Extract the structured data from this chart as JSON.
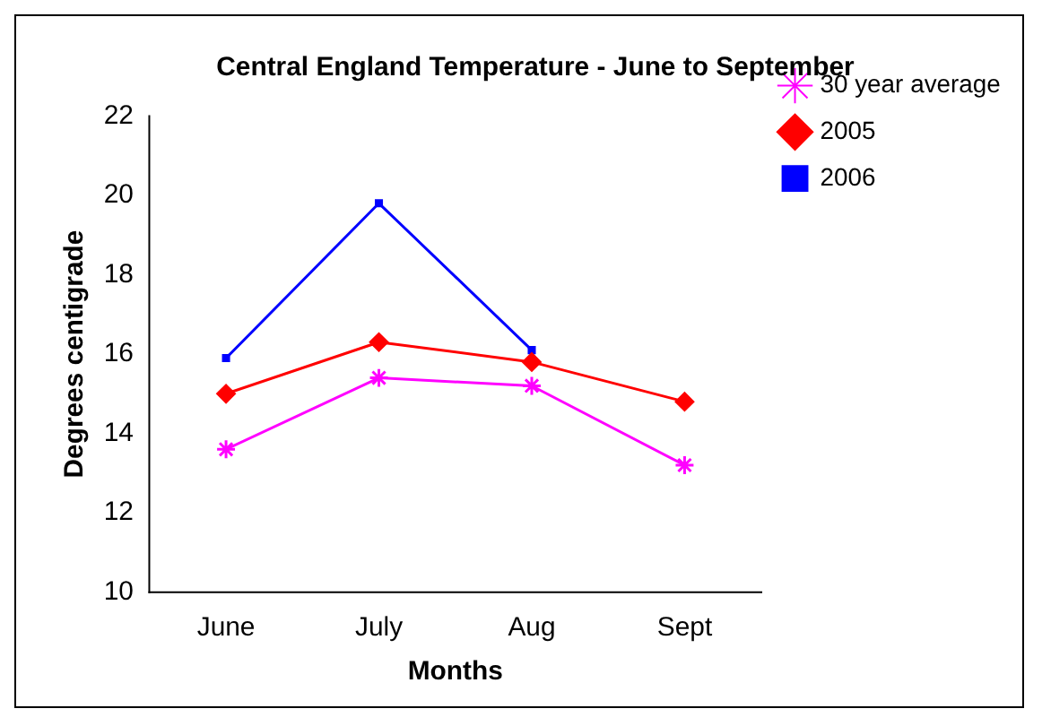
{
  "chart_data": {
    "type": "line",
    "title": "Central England Temperature - June to September",
    "xlabel": "Months",
    "ylabel": "Degrees centigrade",
    "categories": [
      "June",
      "July",
      "Aug",
      "Sept"
    ],
    "series": [
      {
        "name": "30 year average",
        "color": "#ff00ff",
        "marker": "cross",
        "values": [
          13.6,
          15.4,
          15.2,
          13.2
        ]
      },
      {
        "name": "2005",
        "color": "#ff0000",
        "marker": "diamond",
        "values": [
          15.0,
          16.3,
          15.8,
          14.8
        ]
      },
      {
        "name": "2006",
        "color": "#0000ff",
        "marker": "square",
        "values": [
          15.9,
          19.8,
          16.1,
          null
        ]
      }
    ],
    "ylim": [
      10,
      22
    ],
    "yticks": [
      10,
      12,
      14,
      16,
      18,
      20,
      22
    ],
    "grid": false,
    "legend": "right"
  }
}
